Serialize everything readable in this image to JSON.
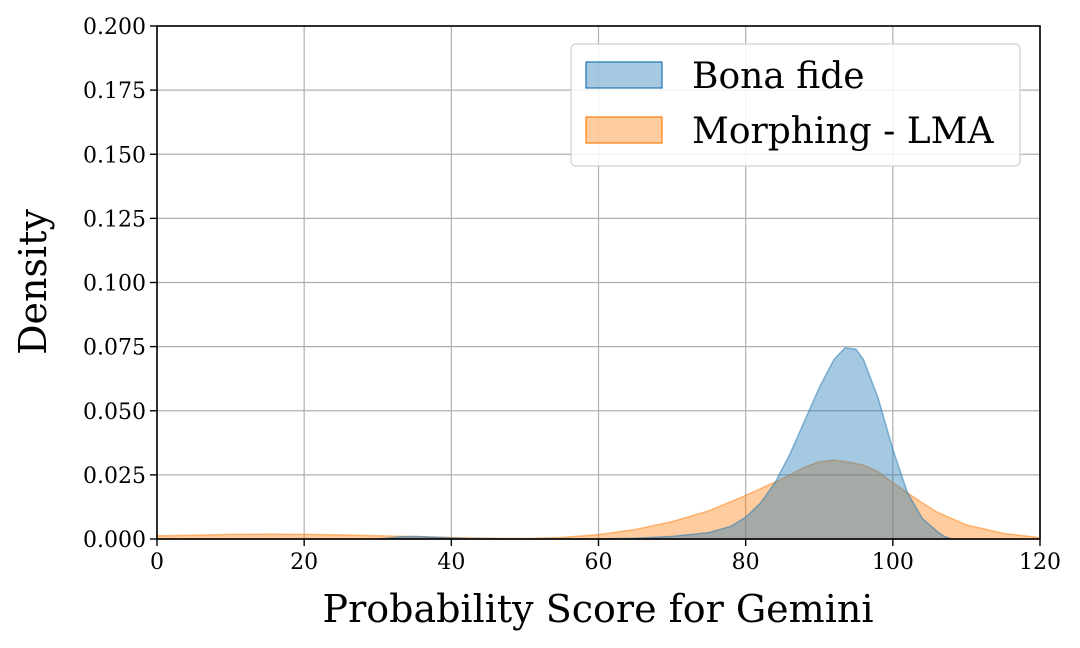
{
  "chart_data": {
    "type": "area",
    "title": "",
    "xlabel": "Probability Score for Gemini",
    "ylabel": "Density",
    "xlim": [
      0,
      120
    ],
    "ylim": [
      0,
      0.2
    ],
    "x_ticks": [
      "0",
      "20",
      "40",
      "60",
      "80",
      "100",
      "120"
    ],
    "y_ticks": [
      "0.000",
      "0.025",
      "0.050",
      "0.075",
      "0.100",
      "0.125",
      "0.150",
      "0.175",
      "0.200"
    ],
    "grid": true,
    "legend_position": "top-right",
    "series": [
      {
        "name": "Bona fide",
        "color": "#1f77b4",
        "points": [
          [
            30,
            0
          ],
          [
            33,
            0.0008
          ],
          [
            35,
            0.001
          ],
          [
            38,
            0.0007
          ],
          [
            42,
            0.0002
          ],
          [
            50,
            0
          ],
          [
            60,
            0
          ],
          [
            65,
            0.0003
          ],
          [
            70,
            0.001
          ],
          [
            75,
            0.0025
          ],
          [
            78,
            0.005
          ],
          [
            80,
            0.0085
          ],
          [
            82,
            0.014
          ],
          [
            84,
            0.022
          ],
          [
            86,
            0.033
          ],
          [
            88,
            0.046
          ],
          [
            90,
            0.059
          ],
          [
            92,
            0.07
          ],
          [
            93.5,
            0.0745
          ],
          [
            95,
            0.074
          ],
          [
            96,
            0.07
          ],
          [
            98,
            0.055
          ],
          [
            100,
            0.035
          ],
          [
            102,
            0.018
          ],
          [
            104,
            0.008
          ],
          [
            106,
            0.003
          ],
          [
            107,
            0.001
          ],
          [
            108,
            0
          ]
        ]
      },
      {
        "name": "Morphing - LMA",
        "color": "#ff7f0e",
        "points": [
          [
            0,
            0.0012
          ],
          [
            5,
            0.0015
          ],
          [
            10,
            0.0018
          ],
          [
            15,
            0.0019
          ],
          [
            20,
            0.0018
          ],
          [
            25,
            0.0016
          ],
          [
            30,
            0.0013
          ],
          [
            35,
            0.0009
          ],
          [
            40,
            0.0006
          ],
          [
            45,
            0.0003
          ],
          [
            50,
            0.0002
          ],
          [
            55,
            0.0006
          ],
          [
            60,
            0.0017
          ],
          [
            65,
            0.0037
          ],
          [
            70,
            0.0068
          ],
          [
            75,
            0.011
          ],
          [
            80,
            0.017
          ],
          [
            85,
            0.0235
          ],
          [
            88,
            0.028
          ],
          [
            90,
            0.0301
          ],
          [
            92,
            0.0308
          ],
          [
            94,
            0.03
          ],
          [
            96,
            0.0288
          ],
          [
            98,
            0.0262
          ],
          [
            100,
            0.022
          ],
          [
            103,
            0.016
          ],
          [
            106,
            0.0105
          ],
          [
            110,
            0.0055
          ],
          [
            115,
            0.0022
          ],
          [
            120,
            0.0005
          ]
        ]
      }
    ]
  }
}
